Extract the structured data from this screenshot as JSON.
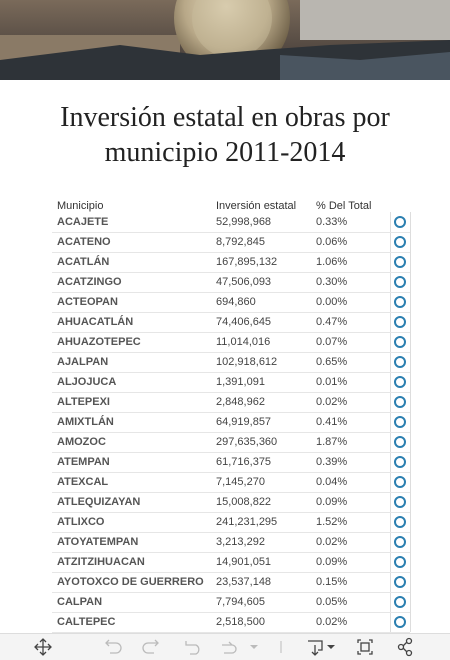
{
  "title": "Inversión estatal en obras por municipio 2011-2014",
  "table": {
    "columns": [
      "Municipio",
      "Inversión estatal",
      "% Del Total"
    ],
    "rows": [
      [
        "ACAJETE",
        "52,998,968",
        "0.33%"
      ],
      [
        "ACATENO",
        "8,792,845",
        "0.06%"
      ],
      [
        "ACATLÁN",
        "167,895,132",
        "1.06%"
      ],
      [
        "ACATZINGO",
        "47,506,093",
        "0.30%"
      ],
      [
        "ACTEOPAN",
        "694,860",
        "0.00%"
      ],
      [
        "AHUACATLÁN",
        "74,406,645",
        "0.47%"
      ],
      [
        "AHUAZOTEPEC",
        "11,014,016",
        "0.07%"
      ],
      [
        "AJALPAN",
        "102,918,612",
        "0.65%"
      ],
      [
        "ALJOJUCA",
        "1,391,091",
        "0.01%"
      ],
      [
        "ALTEPEXI",
        "2,848,962",
        "0.02%"
      ],
      [
        "AMIXTLÁN",
        "64,919,857",
        "0.41%"
      ],
      [
        "AMOZOC",
        "297,635,360",
        "1.87%"
      ],
      [
        "ATEMPAN",
        "61,716,375",
        "0.39%"
      ],
      [
        "ATEXCAL",
        "7,145,270",
        "0.04%"
      ],
      [
        "ATLEQUIZAYAN",
        "15,008,822",
        "0.09%"
      ],
      [
        "ATLIXCO",
        "241,231,295",
        "1.52%"
      ],
      [
        "ATOYATEMPAN",
        "3,213,292",
        "0.02%"
      ],
      [
        "ATZITZIHUACAN",
        "14,901,051",
        "0.09%"
      ],
      [
        "AYOTOXCO DE GUERRERO",
        "23,537,148",
        "0.15%"
      ],
      [
        "CALPAN",
        "7,794,605",
        "0.05%"
      ],
      [
        "CALTEPEC",
        "2,518,500",
        "0.02%"
      ]
    ]
  }
}
